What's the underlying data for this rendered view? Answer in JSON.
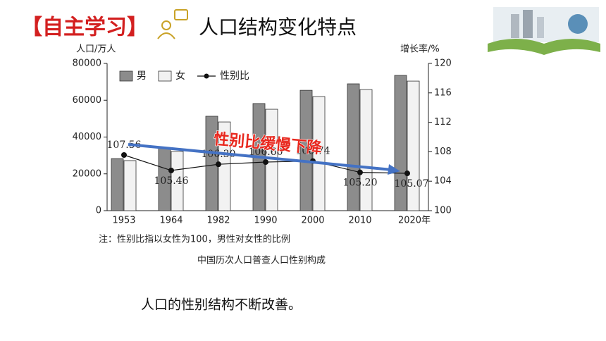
{
  "header": {
    "tag": "【自主学习】",
    "title": "人口结构变化特点"
  },
  "chart_data": {
    "type": "bar",
    "y_label": "人口/万人",
    "y2_label": "增长率/%",
    "categories": [
      "1953",
      "1964",
      "1982",
      "1990",
      "2000",
      "2010",
      "2020年"
    ],
    "series": [
      {
        "name": "男",
        "color": "#8c8c8c",
        "values": [
          28300,
          34000,
          51300,
          58200,
          65400,
          68900,
          73500
        ]
      },
      {
        "name": "女",
        "color": "#f2f2f2",
        "values": [
          27200,
          32200,
          48200,
          55100,
          62000,
          65800,
          70400
        ]
      },
      {
        "name": "性别比",
        "type": "line",
        "axis": "y2",
        "color": "#111111",
        "values": [
          107.56,
          105.46,
          106.3,
          106.6,
          106.74,
          105.2,
          105.07
        ],
        "value_labels": [
          "107.56",
          "105.46",
          "106.30",
          "106.60",
          "106.74",
          "105.20",
          "105.07"
        ]
      }
    ],
    "ylim": [
      0,
      80000
    ],
    "yticks": [
      0,
      20000,
      40000,
      60000,
      80000
    ],
    "y2lim": [
      100,
      120
    ],
    "y2ticks": [
      100,
      104,
      108,
      112,
      116,
      120
    ],
    "annotation": "性别比缓慢下降",
    "note": "注：性别比指以女性为100，男性对女性的比例",
    "caption": "中国历次人口普查人口性别构成"
  },
  "body_text": "人口的性别结构不断改善。"
}
